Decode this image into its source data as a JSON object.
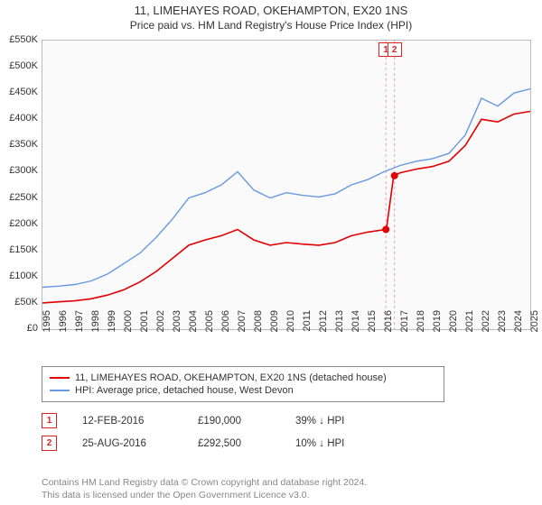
{
  "title": "11, LIMEHAYES ROAD, OKEHAMPTON, EX20 1NS",
  "subtitle": "Price paid vs. HM Land Registry's House Price Index (HPI)",
  "chart": {
    "type": "line",
    "background_color": "#fafafa",
    "border_color": "#bbbbbb",
    "grid": false,
    "ylim": [
      0,
      550000
    ],
    "ytick_step": 50000,
    "yticklabels": [
      "£0",
      "£50K",
      "£100K",
      "£150K",
      "£200K",
      "£250K",
      "£300K",
      "£350K",
      "£400K",
      "£450K",
      "£500K",
      "£550K"
    ],
    "xlim": [
      1995,
      2025
    ],
    "xtick_step": 1,
    "xticklabels": [
      "1995",
      "1996",
      "1997",
      "1998",
      "1999",
      "2000",
      "2001",
      "2002",
      "2003",
      "2004",
      "2005",
      "2006",
      "2007",
      "2008",
      "2009",
      "2010",
      "2011",
      "2012",
      "2013",
      "2014",
      "2015",
      "2016",
      "2017",
      "2018",
      "2019",
      "2020",
      "2021",
      "2022",
      "2023",
      "2024",
      "2025"
    ],
    "series": [
      {
        "name": "property",
        "label": "11, LIMEHAYES ROAD, OKEHAMPTON, EX20 1NS (detached house)",
        "color": "#e20000",
        "line_width": 1.6,
        "x": [
          1995,
          1996,
          1997,
          1998,
          1999,
          2000,
          2001,
          2002,
          2003,
          2004,
          2005,
          2006,
          2007,
          2008,
          2009,
          2010,
          2011,
          2012,
          2013,
          2014,
          2015,
          2016.1,
          2016.15,
          2016.6,
          2017,
          2018,
          2019,
          2020,
          2021,
          2022,
          2023,
          2024,
          2025
        ],
        "y": [
          50000,
          52000,
          54000,
          58000,
          65000,
          75000,
          90000,
          110000,
          135000,
          160000,
          170000,
          178000,
          190000,
          170000,
          160000,
          165000,
          162000,
          160000,
          165000,
          178000,
          185000,
          190000,
          190000,
          292500,
          298000,
          305000,
          310000,
          320000,
          350000,
          400000,
          395000,
          410000,
          415000
        ]
      },
      {
        "name": "hpi",
        "label": "HPI: Average price, detached house, West Devon",
        "color": "#6699e0",
        "line_width": 1.4,
        "x": [
          1995,
          1996,
          1997,
          1998,
          1999,
          2000,
          2001,
          2002,
          2003,
          2004,
          2005,
          2006,
          2007,
          2008,
          2009,
          2010,
          2011,
          2012,
          2013,
          2014,
          2015,
          2016,
          2017,
          2018,
          2019,
          2020,
          2021,
          2022,
          2023,
          2024,
          2025
        ],
        "y": [
          80000,
          82000,
          85000,
          92000,
          105000,
          125000,
          145000,
          175000,
          210000,
          250000,
          260000,
          275000,
          300000,
          265000,
          250000,
          260000,
          255000,
          252000,
          258000,
          275000,
          285000,
          300000,
          312000,
          320000,
          325000,
          335000,
          370000,
          440000,
          425000,
          450000,
          458000
        ]
      }
    ],
    "markers": [
      {
        "x": 2016.12,
        "y": 190000,
        "color": "#e20000",
        "size": 6
      },
      {
        "x": 2016.65,
        "y": 292500,
        "color": "#e20000",
        "size": 6
      }
    ],
    "vlines": [
      {
        "x": 2016.12,
        "color": "#e8a2b8",
        "dash": "3,3"
      },
      {
        "x": 2016.65,
        "color": "#e8a2b8",
        "dash": "3,3"
      }
    ],
    "annotations": [
      {
        "id": "1",
        "x": 2016.12,
        "y_top": 0
      },
      {
        "id": "2",
        "x": 2016.65,
        "y_top": 0
      }
    ]
  },
  "legend": {
    "items": [
      {
        "color": "#e20000",
        "label": "11, LIMEHAYES ROAD, OKEHAMPTON, EX20 1NS (detached house)"
      },
      {
        "color": "#6699e0",
        "label": "HPI: Average price, detached house, West Devon"
      }
    ]
  },
  "sales": [
    {
      "id": "1",
      "date": "12-FEB-2016",
      "price": "£190,000",
      "pct": "39%",
      "arrow": "↓",
      "ref": "HPI"
    },
    {
      "id": "2",
      "date": "25-AUG-2016",
      "price": "£292,500",
      "pct": "10%",
      "arrow": "↓",
      "ref": "HPI"
    }
  ],
  "footer": {
    "line1": "Contains HM Land Registry data © Crown copyright and database right 2024.",
    "line2": "This data is licensed under the Open Government Licence v3.0."
  }
}
